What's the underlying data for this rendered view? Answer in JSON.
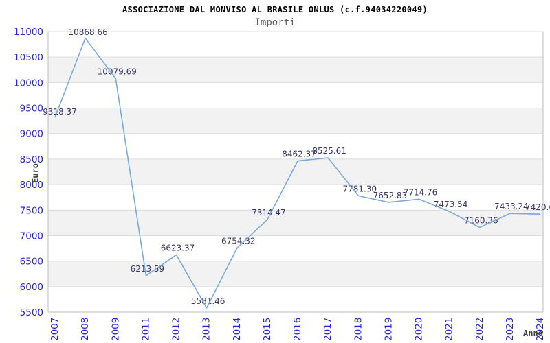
{
  "header": {
    "title": "ASSOCIAZIONE DAL MONVISO AL BRASILE ONLUS (c.f.94034220049)",
    "subtitle": "Importi"
  },
  "chart_data": {
    "type": "line",
    "title": "ASSOCIAZIONE DAL MONVISO AL BRASILE ONLUS (c.f.94034220049)",
    "subtitle": "Importi",
    "xlabel": "Anno",
    "ylabel": "Euro",
    "x": [
      "2007",
      "2008",
      "2009",
      "2011",
      "2012",
      "2013",
      "2014",
      "2015",
      "2016",
      "2017",
      "2018",
      "2019",
      "2020",
      "2021",
      "2022",
      "2023",
      "2024"
    ],
    "values": [
      9318.37,
      10868.66,
      10079.69,
      6213.59,
      6623.37,
      5581.46,
      6754.32,
      7314.47,
      8462.37,
      8525.61,
      7781.3,
      7652.83,
      7714.76,
      7473.54,
      7160.36,
      7433.24,
      7420.6
    ],
    "point_labels": [
      "9318.37",
      "10868.66",
      "10079.69",
      "6213.59",
      "6623.37",
      "5581.46",
      "6754.32",
      "7314.47",
      "8462.37",
      "8525.61",
      "7781.30",
      "7652.83",
      "7714.76",
      "7473.54",
      "7160.36",
      "7433.24",
      "7420.6"
    ],
    "ylim": [
      5500,
      11000
    ],
    "ytick_step": 500,
    "yticks": [
      5500,
      6000,
      6500,
      7000,
      7500,
      8000,
      8500,
      9000,
      9500,
      10000,
      10500,
      11000
    ],
    "grid": true,
    "legend": "none",
    "colors": {
      "line": "#78aadb",
      "point_label": "#333366",
      "tick_label": "#2424dd",
      "band_alt": "#f2f2f2",
      "band_main": "#ffffff",
      "grid_line": "#dcdcdc",
      "axis_border": "#bdbdbd",
      "title": "#000000",
      "subtitle": "#595959",
      "axis_name": "#404040"
    }
  }
}
